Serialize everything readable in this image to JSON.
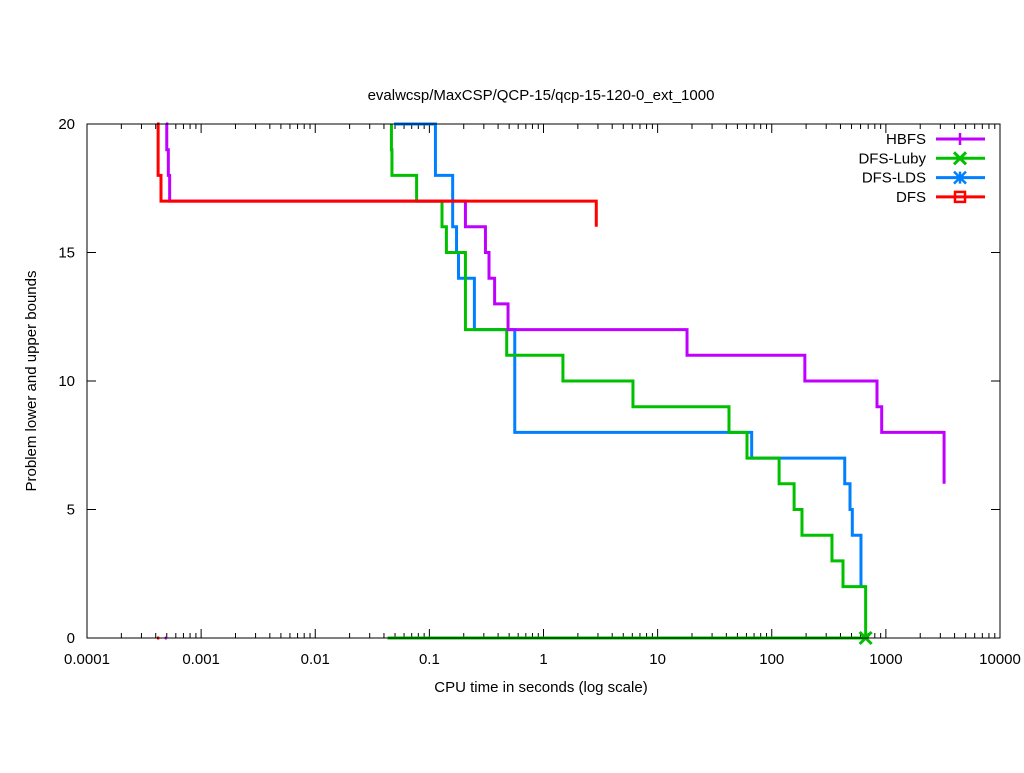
{
  "chart_data": {
    "type": "line",
    "title": "evalwcsp/MaxCSP/QCP-15/qcp-15-120-0_ext_1000",
    "xlabel": "CPU time in seconds (log scale)",
    "ylabel": "Problem lower and upper bounds",
    "xscale": "log",
    "xlim": [
      0.0001,
      10000
    ],
    "ylim": [
      0,
      20
    ],
    "xticks": [
      "0.0001",
      "0.001",
      "0.01",
      "0.1",
      "1",
      "10",
      "100",
      "1000",
      "10000"
    ],
    "yticks": [
      "0",
      "5",
      "10",
      "15",
      "20"
    ],
    "grid": false,
    "legend_position": "top-right",
    "series": [
      {
        "name": "HBFS",
        "color": "#c000ff",
        "marker": "plus",
        "upper": [
          [
            0.00049,
            20
          ],
          [
            0.0005,
            20
          ],
          [
            0.0005,
            19
          ],
          [
            0.000516,
            19
          ],
          [
            0.000516,
            18
          ],
          [
            0.00053,
            18
          ],
          [
            0.00053,
            17
          ],
          [
            0.207,
            17
          ],
          [
            0.207,
            16
          ],
          [
            0.31,
            16
          ],
          [
            0.31,
            15
          ],
          [
            0.333,
            15
          ],
          [
            0.333,
            14
          ],
          [
            0.373,
            14
          ],
          [
            0.373,
            13
          ],
          [
            0.489,
            13
          ],
          [
            0.489,
            12
          ],
          [
            18.1,
            12
          ],
          [
            18.1,
            11
          ],
          [
            195,
            11
          ],
          [
            195,
            10
          ],
          [
            836,
            10
          ],
          [
            836,
            9
          ],
          [
            919,
            9
          ],
          [
            919,
            8
          ],
          [
            3236,
            8
          ],
          [
            3236,
            6
          ]
        ],
        "lower": [
          [
            0.00048,
            0
          ],
          [
            0.0005,
            0
          ]
        ]
      },
      {
        "name": "DFS-Luby",
        "color": "#00c000",
        "marker": "cross",
        "upper": [
          [
            0.0465,
            20
          ],
          [
            0.0465,
            19
          ],
          [
            0.047,
            19
          ],
          [
            0.047,
            18
          ],
          [
            0.0773,
            18
          ],
          [
            0.0773,
            17
          ],
          [
            0.129,
            17
          ],
          [
            0.129,
            16
          ],
          [
            0.141,
            16
          ],
          [
            0.141,
            15
          ],
          [
            0.207,
            15
          ],
          [
            0.207,
            12
          ],
          [
            0.476,
            12
          ],
          [
            0.476,
            11
          ],
          [
            1.48,
            11
          ],
          [
            1.48,
            10
          ],
          [
            6.08,
            10
          ],
          [
            6.08,
            9
          ],
          [
            42.2,
            9
          ],
          [
            42.2,
            8
          ],
          [
            60.7,
            8
          ],
          [
            60.7,
            7
          ],
          [
            116,
            7
          ],
          [
            116,
            6
          ],
          [
            157,
            6
          ],
          [
            157,
            5
          ],
          [
            184,
            5
          ],
          [
            184,
            4
          ],
          [
            337,
            4
          ],
          [
            337,
            3
          ],
          [
            421,
            3
          ],
          [
            421,
            2
          ],
          [
            665,
            2
          ],
          [
            665,
            0
          ]
        ],
        "lower": [
          [
            0.043,
            0
          ],
          [
            665,
            0
          ]
        ]
      },
      {
        "name": "DFS-LDS",
        "color": "#0080ff",
        "marker": "star",
        "upper": [
          [
            0.049,
            20
          ],
          [
            0.113,
            20
          ],
          [
            0.113,
            18
          ],
          [
            0.16,
            18
          ],
          [
            0.16,
            16
          ],
          [
            0.173,
            16
          ],
          [
            0.173,
            15
          ],
          [
            0.18,
            15
          ],
          [
            0.18,
            14
          ],
          [
            0.248,
            14
          ],
          [
            0.248,
            12
          ],
          [
            0.56,
            12
          ],
          [
            0.56,
            8
          ],
          [
            66.7,
            8
          ],
          [
            66.7,
            7
          ],
          [
            436,
            7
          ],
          [
            436,
            6
          ],
          [
            485,
            6
          ],
          [
            485,
            5
          ],
          [
            508,
            5
          ],
          [
            508,
            4
          ],
          [
            605,
            4
          ],
          [
            605,
            2
          ]
        ],
        "lower": [
          [
            0.048,
            0
          ],
          [
            605,
            0
          ]
        ]
      },
      {
        "name": "DFS",
        "color": "#ff0000",
        "marker": "square",
        "upper": [
          [
            0.00041,
            20
          ],
          [
            0.00042,
            20
          ],
          [
            0.00042,
            18
          ],
          [
            0.000445,
            18
          ],
          [
            0.000445,
            17
          ],
          [
            2.9,
            17
          ],
          [
            2.9,
            16
          ]
        ],
        "lower": [
          [
            0.00041,
            0
          ],
          [
            0.00043,
            0
          ]
        ]
      }
    ]
  }
}
